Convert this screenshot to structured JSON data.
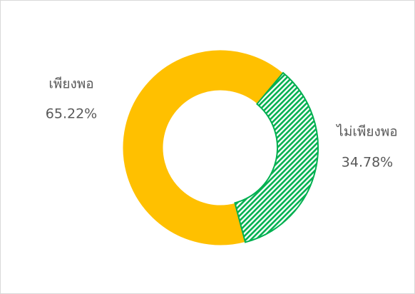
{
  "chart_data": {
    "type": "donut",
    "categories": [
      "เพียงพอ",
      "ไม่เพียงพอ"
    ],
    "values": [
      65.22,
      34.78
    ],
    "value_labels": [
      "65.22%",
      "34.78%"
    ],
    "colors": [
      "#FFC000",
      "#00B050"
    ]
  }
}
